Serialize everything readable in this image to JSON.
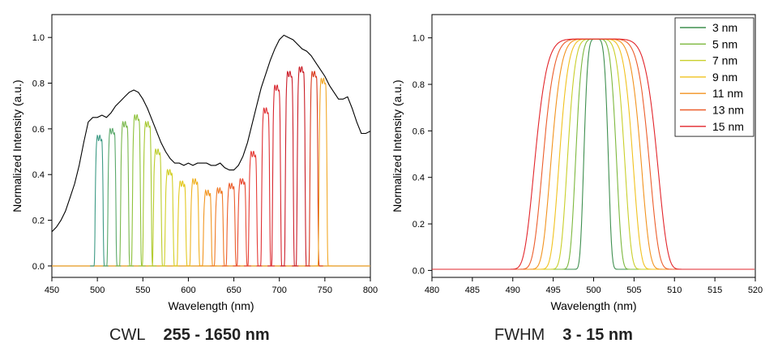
{
  "captions": {
    "left": {
      "label": "CWL",
      "range": "255 - 1650 nm"
    },
    "right": {
      "label": "FWHM",
      "range": "3 - 15 nm"
    }
  },
  "chart_data": [
    {
      "type": "line",
      "title": "",
      "xlabel": "Wavelength (nm)",
      "ylabel": "Normalized Intensity (a.u.)",
      "xlim": [
        450,
        800
      ],
      "ylim": [
        -0.05,
        1.1
      ],
      "xticks": [
        450,
        500,
        550,
        600,
        650,
        700,
        750,
        800
      ],
      "yticks": [
        0.0,
        0.2,
        0.4,
        0.6,
        0.8,
        1.0
      ],
      "grid": false,
      "legend": "none",
      "envelope": {
        "color": "#000000",
        "x": [
          450,
          455,
          460,
          465,
          470,
          475,
          480,
          485,
          490,
          495,
          500,
          505,
          510,
          515,
          520,
          525,
          530,
          535,
          540,
          545,
          550,
          555,
          560,
          565,
          570,
          575,
          580,
          585,
          590,
          595,
          600,
          605,
          610,
          615,
          620,
          625,
          630,
          635,
          640,
          645,
          650,
          655,
          660,
          665,
          670,
          675,
          680,
          685,
          690,
          695,
          700,
          705,
          710,
          715,
          720,
          725,
          730,
          735,
          740,
          745,
          750,
          755,
          760,
          765,
          770,
          775,
          780,
          785,
          790,
          795,
          800
        ],
        "y": [
          0.15,
          0.17,
          0.2,
          0.24,
          0.3,
          0.36,
          0.44,
          0.54,
          0.63,
          0.65,
          0.65,
          0.66,
          0.65,
          0.67,
          0.7,
          0.72,
          0.74,
          0.76,
          0.77,
          0.76,
          0.73,
          0.69,
          0.64,
          0.59,
          0.54,
          0.5,
          0.47,
          0.45,
          0.45,
          0.44,
          0.45,
          0.44,
          0.45,
          0.45,
          0.45,
          0.44,
          0.44,
          0.45,
          0.43,
          0.42,
          0.42,
          0.44,
          0.48,
          0.54,
          0.62,
          0.7,
          0.78,
          0.84,
          0.9,
          0.95,
          0.99,
          1.01,
          1.0,
          0.99,
          0.97,
          0.95,
          0.94,
          0.92,
          0.89,
          0.86,
          0.83,
          0.79,
          0.76,
          0.73,
          0.73,
          0.74,
          0.69,
          0.63,
          0.58,
          0.58,
          0.59
        ]
      },
      "filters": [
        {
          "center": 502,
          "height": 0.56,
          "color": "#3d9a84"
        },
        {
          "center": 516,
          "height": 0.59,
          "color": "#5aa86a"
        },
        {
          "center": 530,
          "height": 0.62,
          "color": "#7ab84c"
        },
        {
          "center": 543,
          "height": 0.65,
          "color": "#8fc23c"
        },
        {
          "center": 555,
          "height": 0.62,
          "color": "#a6c830"
        },
        {
          "center": 566,
          "height": 0.5,
          "color": "#bccd2c"
        },
        {
          "center": 579,
          "height": 0.41,
          "color": "#d2cf26"
        },
        {
          "center": 593,
          "height": 0.36,
          "color": "#e3c820"
        },
        {
          "center": 607,
          "height": 0.37,
          "color": "#efb11f"
        },
        {
          "center": 621,
          "height": 0.32,
          "color": "#f29622"
        },
        {
          "center": 634,
          "height": 0.33,
          "color": "#f07a26"
        },
        {
          "center": 647,
          "height": 0.35,
          "color": "#ec5e2c"
        },
        {
          "center": 659,
          "height": 0.37,
          "color": "#e84a32"
        },
        {
          "center": 671,
          "height": 0.49,
          "color": "#e63c36"
        },
        {
          "center": 685,
          "height": 0.68,
          "color": "#e03034"
        },
        {
          "center": 697,
          "height": 0.78,
          "color": "#d8262f"
        },
        {
          "center": 711,
          "height": 0.84,
          "color": "#cc1e2a"
        },
        {
          "center": 724,
          "height": 0.86,
          "color": "#c91c25"
        },
        {
          "center": 738,
          "height": 0.84,
          "color": "#d93a1e"
        },
        {
          "center": 748,
          "height": 0.81,
          "color": "#f2a826"
        }
      ],
      "baseline_color": "#e8a030"
    },
    {
      "type": "line",
      "title": "",
      "xlabel": "Wavelength (nm)",
      "ylabel": "Normalized Intensity (a.u.)",
      "xlim": [
        480,
        520
      ],
      "ylim": [
        -0.03,
        1.1
      ],
      "xticks": [
        480,
        485,
        490,
        495,
        500,
        505,
        510,
        515,
        520
      ],
      "yticks": [
        0.0,
        0.2,
        0.4,
        0.6,
        0.8,
        1.0
      ],
      "grid": false,
      "legend": "top-right",
      "series": [
        {
          "name": "3 nm",
          "fwhm": 3,
          "color": "#3f8f4f"
        },
        {
          "name": "5 nm",
          "fwhm": 5,
          "color": "#7db83e"
        },
        {
          "name": "7 nm",
          "fwhm": 7,
          "color": "#c9cf2a"
        },
        {
          "name": "9 nm",
          "fwhm": 9,
          "color": "#f1c21e"
        },
        {
          "name": "11 nm",
          "fwhm": 11,
          "color": "#f2931f"
        },
        {
          "name": "13 nm",
          "fwhm": 13,
          "color": "#ec5e2c"
        },
        {
          "name": "15 nm",
          "fwhm": 15,
          "color": "#e2252b"
        }
      ],
      "center": 500.3
    }
  ]
}
